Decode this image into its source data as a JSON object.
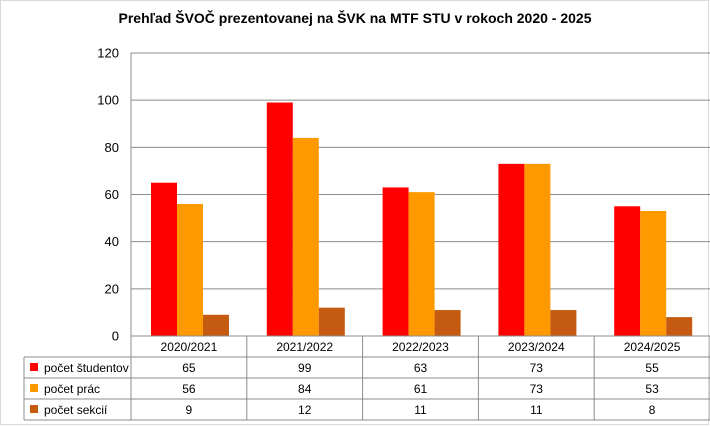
{
  "chart_data": {
    "type": "bar",
    "title": "Prehľad ŠVOČ prezentovanej na ŠVK na MTF STU v rokoch 2020 - 2025",
    "categories": [
      "2020/2021",
      "2021/2022",
      "2022/2023",
      "2023/2024",
      "2024/2025"
    ],
    "series": [
      {
        "name": "počet študentov",
        "color": "#ff0000",
        "values": [
          65,
          99,
          63,
          73,
          55
        ]
      },
      {
        "name": "počet prác",
        "color": "#ff9900",
        "values": [
          56,
          84,
          61,
          73,
          53
        ]
      },
      {
        "name": "počet sekcií",
        "color": "#c55a11",
        "values": [
          9,
          12,
          11,
          11,
          8
        ]
      }
    ],
    "y_ticks": [
      0,
      20,
      40,
      60,
      80,
      100,
      120
    ],
    "ylim": [
      0,
      120
    ],
    "grid": true,
    "legend": "data table below chart",
    "xlabel": "",
    "ylabel": ""
  }
}
